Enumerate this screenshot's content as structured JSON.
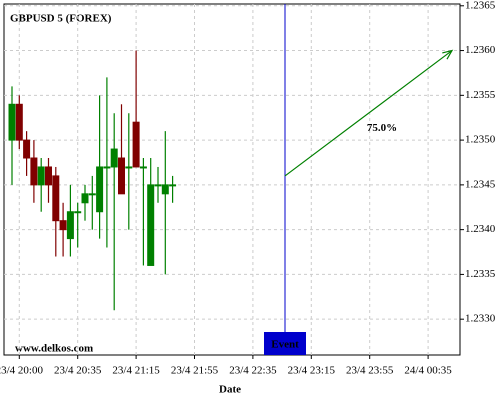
{
  "chart_data": {
    "type": "candlestick",
    "title": "GBPUSD 5 (FOREX)",
    "x_label": "Date",
    "watermark": "www.delkos.com",
    "categories": [
      null,
      "23/4 20:00",
      null,
      null,
      null,
      null,
      null,
      null,
      null,
      "23/4 20:35",
      null,
      null,
      null,
      null,
      null,
      null,
      null,
      "23/4 21:15",
      null,
      null,
      null,
      null,
      null,
      null,
      null,
      "23/4 21:55",
      null,
      null,
      null,
      null,
      null,
      null,
      null,
      "23/4 22:35",
      null,
      null,
      null,
      null,
      null,
      null,
      null,
      "23/4 23:15",
      null,
      null,
      null,
      null,
      null,
      null,
      null,
      "23/4 23:55",
      null,
      null,
      null,
      null,
      null,
      null,
      null,
      "24/4 00:35",
      null,
      null,
      null,
      null
    ],
    "open": [
      1.235,
      1.2354,
      1.235,
      1.2348,
      1.2345,
      1.2347,
      1.2346,
      1.2341,
      1.2339,
      1.2342,
      1.2343,
      1.2344,
      1.2342,
      1.2347,
      1.2347,
      1.2348,
      1.2347,
      1.2352,
      1.2347,
      1.2336,
      1.2345,
      1.2344,
      1.2345,
      null,
      null,
      null,
      null,
      null,
      null,
      null,
      null,
      null,
      null,
      null,
      null,
      null,
      null,
      null,
      null,
      null,
      null,
      null,
      null,
      null,
      null,
      null,
      null,
      null,
      null,
      null,
      null,
      null,
      null,
      null,
      null,
      null,
      null,
      null,
      null,
      null,
      null,
      null
    ],
    "high": [
      1.2356,
      1.2355,
      1.2351,
      1.235,
      1.2348,
      1.2348,
      1.2347,
      1.2343,
      1.2345,
      1.2343,
      1.2345,
      1.2346,
      1.2355,
      1.2357,
      1.2353,
      1.2354,
      1.2353,
      1.236,
      1.2348,
      1.2348,
      1.2347,
      1.2351,
      1.2346,
      null,
      null,
      null,
      null,
      null,
      null,
      null,
      null,
      null,
      null,
      null,
      null,
      null,
      null,
      null,
      null,
      null,
      null,
      null,
      null,
      null,
      null,
      null,
      null,
      null,
      null,
      null,
      null,
      null,
      null,
      null,
      null,
      null,
      null,
      null,
      null,
      null,
      null,
      null
    ],
    "low": [
      1.2345,
      1.2349,
      1.2346,
      1.2343,
      1.2342,
      1.2343,
      1.2337,
      1.2337,
      1.2337,
      1.2338,
      1.2341,
      1.234,
      1.2339,
      1.2338,
      1.2331,
      1.2344,
      1.234,
      1.2347,
      1.2336,
      1.2336,
      1.2343,
      1.2335,
      1.2343,
      null,
      null,
      null,
      null,
      null,
      null,
      null,
      null,
      null,
      null,
      null,
      null,
      null,
      null,
      null,
      null,
      null,
      null,
      null,
      null,
      null,
      null,
      null,
      null,
      null,
      null,
      null,
      null,
      null,
      null,
      null,
      null,
      null,
      null,
      null,
      null,
      null,
      null,
      null
    ],
    "close": [
      1.2354,
      1.235,
      1.2348,
      1.2345,
      1.2347,
      1.2345,
      1.2341,
      1.234,
      1.2342,
      1.2342,
      1.2344,
      1.2344,
      1.2347,
      1.2347,
      1.2349,
      1.2344,
      1.2347,
      1.2347,
      1.2347,
      1.2345,
      1.2345,
      1.2345,
      1.2345,
      null,
      null,
      null,
      null,
      null,
      null,
      null,
      null,
      null,
      null,
      null,
      null,
      null,
      null,
      null,
      null,
      null,
      null,
      null,
      null,
      null,
      null,
      null,
      null,
      null,
      null,
      null,
      null,
      null,
      null,
      null,
      null,
      null,
      null,
      null,
      null,
      null,
      null,
      null
    ],
    "up_color": "#008000",
    "down_color": "#800000",
    "ylim": [
      1.2326,
      1.23652
    ],
    "yticks": [
      {
        "value": 1.233,
        "label": "1.2330"
      },
      1.2335,
      {
        "value": 1.234,
        "label": "1.2340"
      },
      1.2345,
      {
        "value": 1.235,
        "label": "1.2350"
      },
      1.2355,
      {
        "value": 1.236,
        "label": "1.2360"
      },
      1.2365
    ],
    "grid": true,
    "event": {
      "label": "Event",
      "forecast_label": "75.0%",
      "forecast_start": 1.2346,
      "forecast_end": 1.236,
      "color": "#0000cc",
      "forecast_color": "#008000"
    }
  }
}
